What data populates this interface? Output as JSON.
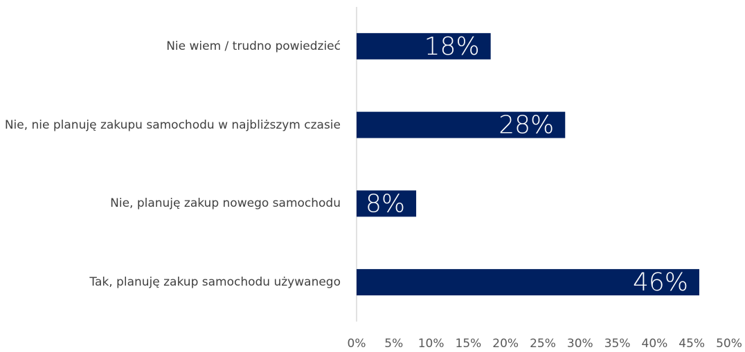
{
  "chart_data": {
    "type": "bar",
    "orientation": "horizontal",
    "categories": [
      "Nie wiem / trudno powiedzieć",
      "Nie, nie planuję zakupu samochodu w najbliższym czasie",
      "Nie, planuję zakup nowego samochodu",
      "Tak, planuję zakup samochodu używanego"
    ],
    "values": [
      18,
      28,
      8,
      46
    ],
    "value_labels": [
      "18%",
      "28%",
      "8%",
      "46%"
    ],
    "color": "#002060",
    "xlim": [
      0,
      50
    ],
    "xticks": [
      {
        "value": 0,
        "label": "0%"
      },
      {
        "value": 5,
        "label": "5%"
      },
      {
        "value": 10,
        "label": "10%"
      },
      {
        "value": 15,
        "label": "15%"
      },
      {
        "value": 20,
        "label": "20%"
      },
      {
        "value": 25,
        "label": "25%"
      },
      {
        "value": 30,
        "label": "30%"
      },
      {
        "value": 35,
        "label": "35%"
      },
      {
        "value": 40,
        "label": "40%"
      },
      {
        "value": 45,
        "label": "45%"
      },
      {
        "value": 50,
        "label": "50%"
      }
    ]
  }
}
